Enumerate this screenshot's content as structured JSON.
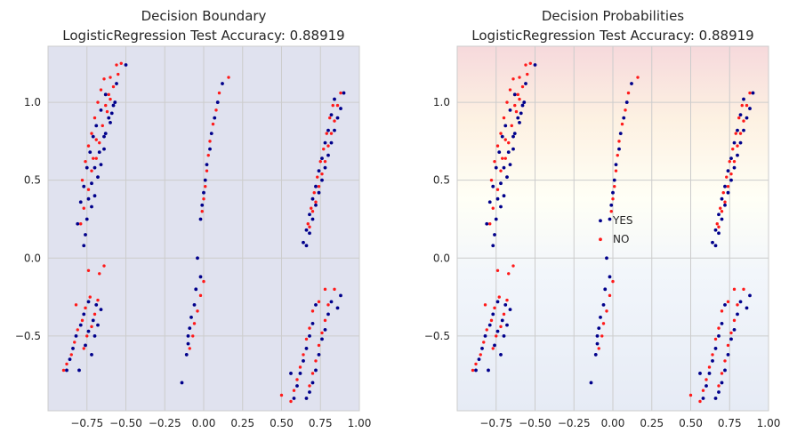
{
  "colors": {
    "yes": "#00008b",
    "no": "#ff1a1a",
    "plot_bg": "#e0e2ef",
    "grid": "#cccccc"
  },
  "chart_data": [
    {
      "type": "scatter",
      "title_line1": "Decision Boundary",
      "title_line2": "LogisticRegression Test Accuracy: 0.88919",
      "xlabel": "",
      "ylabel": "",
      "xlim": [
        -1.0,
        1.0
      ],
      "ylim": [
        -0.98,
        1.36
      ],
      "xticks": [
        -0.75,
        -0.5,
        -0.25,
        0.0,
        0.25,
        0.5,
        0.75,
        1.0
      ],
      "yticks": [
        -0.5,
        0.0,
        0.5,
        1.0
      ],
      "grid": true,
      "background": "decision-boundary-fill",
      "legend": false
    },
    {
      "type": "scatter",
      "title_line1": "Decision Probabilities",
      "title_line2": "LogisticRegression Test Accuracy: 0.88919",
      "xlabel": "",
      "ylabel": "",
      "xlim": [
        -1.0,
        1.0
      ],
      "ylim": [
        -0.98,
        1.36
      ],
      "xticks": [
        -0.75,
        -0.5,
        -0.25,
        0.0,
        0.25,
        0.5,
        0.75,
        1.0
      ],
      "yticks": [
        -0.5,
        0.0,
        0.5,
        1.0
      ],
      "grid": true,
      "background": "probability-gradient",
      "legend": true,
      "legend_position": "center",
      "legend_entries": [
        "YES",
        "NO"
      ]
    }
  ],
  "series_points": {
    "YES": [
      [
        -0.5,
        1.24
      ],
      [
        -0.56,
        1.12
      ],
      [
        -0.57,
        1.0
      ],
      [
        -0.59,
        0.93
      ],
      [
        -0.6,
        0.87
      ],
      [
        -0.63,
        0.8
      ],
      [
        -0.64,
        0.7
      ],
      [
        -0.66,
        0.6
      ],
      [
        -0.68,
        0.52
      ],
      [
        -0.7,
        0.4
      ],
      [
        -0.72,
        0.33
      ],
      [
        -0.75,
        0.25
      ],
      [
        -0.76,
        0.15
      ],
      [
        -0.77,
        0.08
      ],
      [
        -0.63,
        1.05
      ],
      [
        -0.66,
        0.95
      ],
      [
        -0.69,
        0.85
      ],
      [
        -0.71,
        0.78
      ],
      [
        -0.73,
        0.68
      ],
      [
        -0.75,
        0.58
      ],
      [
        -0.77,
        0.46
      ],
      [
        -0.79,
        0.36
      ],
      [
        -0.81,
        0.22
      ],
      [
        -0.58,
        0.98
      ],
      [
        -0.61,
        0.9
      ],
      [
        -0.64,
        0.78
      ],
      [
        -0.67,
        0.68
      ],
      [
        -0.7,
        0.58
      ],
      [
        -0.72,
        0.48
      ],
      [
        -0.74,
        0.38
      ],
      [
        -0.74,
        -0.28
      ],
      [
        -0.77,
        -0.36
      ],
      [
        -0.79,
        -0.43
      ],
      [
        -0.82,
        -0.5
      ],
      [
        -0.84,
        -0.58
      ],
      [
        -0.86,
        -0.65
      ],
      [
        -0.88,
        -0.72
      ],
      [
        -0.69,
        -0.3
      ],
      [
        -0.71,
        -0.4
      ],
      [
        -0.74,
        -0.47
      ],
      [
        -0.76,
        -0.56
      ],
      [
        -0.8,
        -0.72
      ],
      [
        -0.72,
        -0.62
      ],
      [
        -0.66,
        -0.33
      ],
      [
        -0.68,
        -0.43
      ],
      [
        -0.7,
        -0.5
      ],
      [
        0.12,
        1.12
      ],
      [
        0.09,
        1.0
      ],
      [
        0.07,
        0.9
      ],
      [
        0.05,
        0.8
      ],
      [
        0.04,
        0.7
      ],
      [
        0.02,
        0.6
      ],
      [
        0.01,
        0.5
      ],
      [
        0.0,
        0.42
      ],
      [
        -0.01,
        0.34
      ],
      [
        -0.02,
        0.25
      ],
      [
        -0.04,
        -0.0
      ],
      [
        -0.02,
        -0.12
      ],
      [
        -0.05,
        -0.2
      ],
      [
        -0.06,
        -0.3
      ],
      [
        -0.08,
        -0.38
      ],
      [
        -0.1,
        -0.5
      ],
      [
        -0.1,
        -0.55
      ],
      [
        -0.11,
        -0.62
      ],
      [
        -0.14,
        -0.8
      ],
      [
        -0.09,
        -0.45
      ],
      [
        0.9,
        1.06
      ],
      [
        0.88,
        0.96
      ],
      [
        0.86,
        0.9
      ],
      [
        0.84,
        0.82
      ],
      [
        0.82,
        0.74
      ],
      [
        0.8,
        0.66
      ],
      [
        0.78,
        0.58
      ],
      [
        0.76,
        0.5
      ],
      [
        0.74,
        0.42
      ],
      [
        0.72,
        0.34
      ],
      [
        0.7,
        0.25
      ],
      [
        0.68,
        0.16
      ],
      [
        0.66,
        0.08
      ],
      [
        0.84,
        1.02
      ],
      [
        0.82,
        0.92
      ],
      [
        0.8,
        0.82
      ],
      [
        0.78,
        0.74
      ],
      [
        0.76,
        0.64
      ],
      [
        0.74,
        0.56
      ],
      [
        0.72,
        0.46
      ],
      [
        0.7,
        0.38
      ],
      [
        0.68,
        0.28
      ],
      [
        0.66,
        0.18
      ],
      [
        0.64,
        0.1
      ],
      [
        0.82,
        -0.28
      ],
      [
        0.8,
        -0.36
      ],
      [
        0.78,
        -0.46
      ],
      [
        0.76,
        -0.52
      ],
      [
        0.74,
        -0.62
      ],
      [
        0.72,
        -0.72
      ],
      [
        0.7,
        -0.8
      ],
      [
        0.68,
        -0.86
      ],
      [
        0.72,
        -0.3
      ],
      [
        0.7,
        -0.42
      ],
      [
        0.68,
        -0.5
      ],
      [
        0.66,
        -0.58
      ],
      [
        0.64,
        -0.66
      ],
      [
        0.62,
        -0.74
      ],
      [
        0.6,
        -0.82
      ],
      [
        0.58,
        -0.9
      ],
      [
        0.88,
        -0.24
      ],
      [
        0.86,
        -0.32
      ],
      [
        0.66,
        -0.9
      ],
      [
        0.56,
        -0.74
      ]
    ],
    "NO": [
      [
        -0.53,
        1.25
      ],
      [
        -0.55,
        1.18
      ],
      [
        -0.58,
        1.1
      ],
      [
        -0.6,
        1.02
      ],
      [
        -0.62,
        0.94
      ],
      [
        -0.65,
        0.85
      ],
      [
        -0.67,
        0.74
      ],
      [
        -0.69,
        0.64
      ],
      [
        -0.72,
        0.56
      ],
      [
        -0.74,
        0.44
      ],
      [
        -0.77,
        0.32
      ],
      [
        -0.79,
        0.22
      ],
      [
        -0.64,
        1.15
      ],
      [
        -0.66,
        1.08
      ],
      [
        -0.68,
        1.0
      ],
      [
        -0.7,
        0.9
      ],
      [
        -0.72,
        0.8
      ],
      [
        -0.74,
        0.72
      ],
      [
        -0.76,
        0.62
      ],
      [
        -0.78,
        0.5
      ],
      [
        -0.56,
        1.24
      ],
      [
        -0.6,
        1.16
      ],
      [
        -0.61,
        1.05
      ],
      [
        -0.63,
        0.98
      ],
      [
        -0.69,
        0.76
      ],
      [
        -0.71,
        0.64
      ],
      [
        -0.73,
        -0.25
      ],
      [
        -0.76,
        -0.32
      ],
      [
        -0.78,
        -0.4
      ],
      [
        -0.81,
        -0.46
      ],
      [
        -0.83,
        -0.54
      ],
      [
        -0.85,
        -0.62
      ],
      [
        -0.88,
        -0.68
      ],
      [
        -0.9,
        -0.72
      ],
      [
        -0.68,
        -0.27
      ],
      [
        -0.7,
        -0.36
      ],
      [
        -0.72,
        -0.44
      ],
      [
        -0.75,
        -0.5
      ],
      [
        -0.77,
        -0.58
      ],
      [
        -0.64,
        -0.05
      ],
      [
        -0.67,
        -0.1
      ],
      [
        -0.74,
        -0.08
      ],
      [
        -0.82,
        -0.3
      ],
      [
        0.16,
        1.16
      ],
      [
        0.1,
        1.06
      ],
      [
        0.08,
        0.95
      ],
      [
        0.06,
        0.86
      ],
      [
        0.04,
        0.75
      ],
      [
        0.03,
        0.66
      ],
      [
        0.02,
        0.56
      ],
      [
        0.01,
        0.46
      ],
      [
        0.0,
        0.38
      ],
      [
        -0.01,
        0.3
      ],
      [
        -0.0,
        -0.15
      ],
      [
        -0.02,
        -0.24
      ],
      [
        -0.04,
        -0.34
      ],
      [
        -0.06,
        -0.42
      ],
      [
        -0.07,
        -0.5
      ],
      [
        -0.09,
        -0.58
      ],
      [
        0.88,
        1.06
      ],
      [
        0.86,
        0.98
      ],
      [
        0.84,
        0.88
      ],
      [
        0.82,
        0.8
      ],
      [
        0.8,
        0.72
      ],
      [
        0.78,
        0.62
      ],
      [
        0.76,
        0.54
      ],
      [
        0.74,
        0.46
      ],
      [
        0.72,
        0.36
      ],
      [
        0.7,
        0.3
      ],
      [
        0.68,
        0.2
      ],
      [
        0.83,
        0.98
      ],
      [
        0.81,
        0.9
      ],
      [
        0.79,
        0.8
      ],
      [
        0.77,
        0.7
      ],
      [
        0.75,
        0.62
      ],
      [
        0.73,
        0.52
      ],
      [
        0.71,
        0.42
      ],
      [
        0.69,
        0.32
      ],
      [
        0.67,
        0.22
      ],
      [
        0.8,
        -0.3
      ],
      [
        0.78,
        -0.4
      ],
      [
        0.76,
        -0.48
      ],
      [
        0.74,
        -0.56
      ],
      [
        0.72,
        -0.66
      ],
      [
        0.7,
        -0.74
      ],
      [
        0.68,
        -0.82
      ],
      [
        0.7,
        -0.34
      ],
      [
        0.68,
        -0.45
      ],
      [
        0.66,
        -0.52
      ],
      [
        0.64,
        -0.62
      ],
      [
        0.62,
        -0.7
      ],
      [
        0.6,
        -0.78
      ],
      [
        0.58,
        -0.85
      ],
      [
        0.56,
        -0.92
      ],
      [
        0.84,
        -0.2
      ],
      [
        0.78,
        -0.2
      ],
      [
        0.74,
        -0.28
      ],
      [
        0.5,
        -0.88
      ]
    ]
  }
}
